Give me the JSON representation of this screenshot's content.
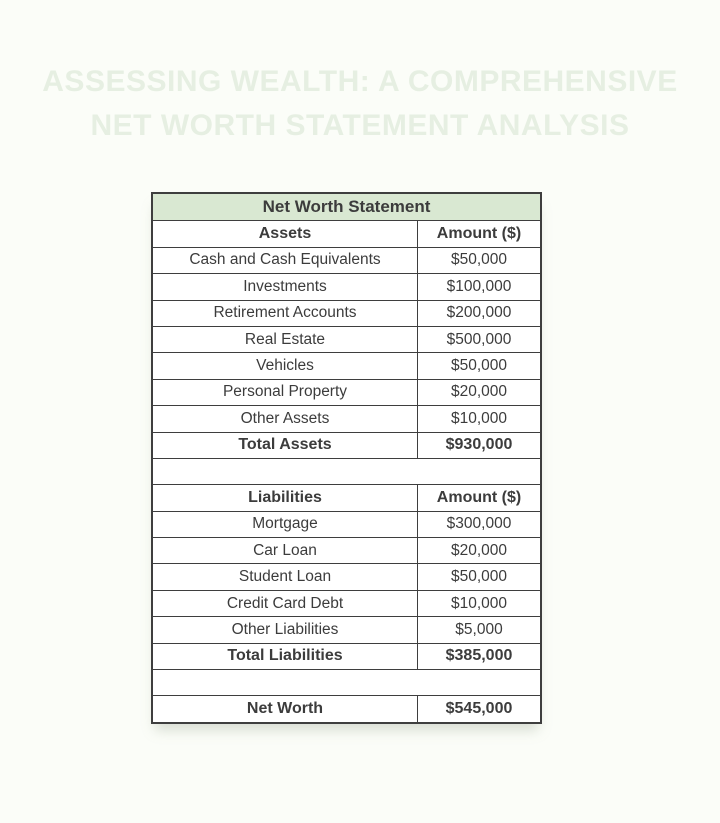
{
  "page": {
    "background": "#fbfdf8"
  },
  "title": {
    "line1": "ASSESSING WEALTH: A COMPREHENSIVE",
    "line2": "NET WORTH STATEMENT ANALYSIS",
    "color": "#e6efe2"
  },
  "colors": {
    "table_header_bg": "#d9e8d2",
    "table_border": "#3e3e3e",
    "table_text": "#3c3c3c"
  },
  "table": {
    "title": "Net Worth Statement",
    "assets": {
      "header": {
        "label": "Assets",
        "amount": "Amount ($)"
      },
      "rows": [
        {
          "label": "Cash and Cash Equivalents",
          "amount": "$50,000"
        },
        {
          "label": "Investments",
          "amount": "$100,000"
        },
        {
          "label": "Retirement Accounts",
          "amount": "$200,000"
        },
        {
          "label": "Real Estate",
          "amount": "$500,000"
        },
        {
          "label": "Vehicles",
          "amount": "$50,000"
        },
        {
          "label": "Personal Property",
          "amount": "$20,000"
        },
        {
          "label": "Other Assets",
          "amount": "$10,000"
        }
      ],
      "total": {
        "label": "Total Assets",
        "amount": "$930,000"
      }
    },
    "liabilities": {
      "header": {
        "label": "Liabilities",
        "amount": "Amount ($)"
      },
      "rows": [
        {
          "label": "Mortgage",
          "amount": "$300,000"
        },
        {
          "label": "Car Loan",
          "amount": "$20,000"
        },
        {
          "label": "Student Loan",
          "amount": "$50,000"
        },
        {
          "label": "Credit Card Debt",
          "amount": "$10,000"
        },
        {
          "label": "Other Liabilities",
          "amount": "$5,000"
        }
      ],
      "total": {
        "label": "Total Liabilities",
        "amount": "$385,000"
      }
    },
    "net_worth": {
      "label": "Net Worth",
      "amount": "$545,000"
    }
  }
}
